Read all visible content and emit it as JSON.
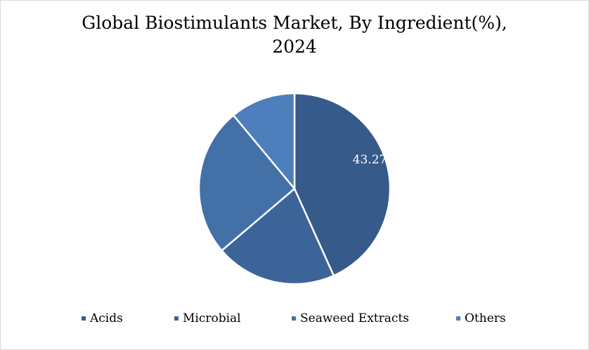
{
  "chart_data": {
    "type": "pie",
    "title_line1": "Global Biostimulants Market, By Ingredient(%),",
    "title_line2": "2024",
    "slices": [
      {
        "name": "Acids",
        "value": 43.27,
        "color": "#365a89",
        "label": "43.27%"
      },
      {
        "name": "Microbial",
        "value": 20.5,
        "color": "#3d6499",
        "label": ""
      },
      {
        "name": "Seaweed Extracts",
        "value": 25.2,
        "color": "#4470a8",
        "label": ""
      },
      {
        "name": "Others",
        "value": 11.03,
        "color": "#4c7fbb",
        "label": ""
      }
    ],
    "legend_position": "bottom"
  }
}
